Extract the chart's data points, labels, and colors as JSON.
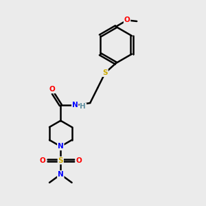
{
  "bg_color": "#ebebeb",
  "bond_color": "#000000",
  "atom_colors": {
    "O": "#ff0000",
    "N": "#0000ff",
    "S": "#ccaa00",
    "H": "#6090a0",
    "C": "#000000"
  },
  "figsize": [
    3.0,
    3.0
  ],
  "dpi": 100
}
